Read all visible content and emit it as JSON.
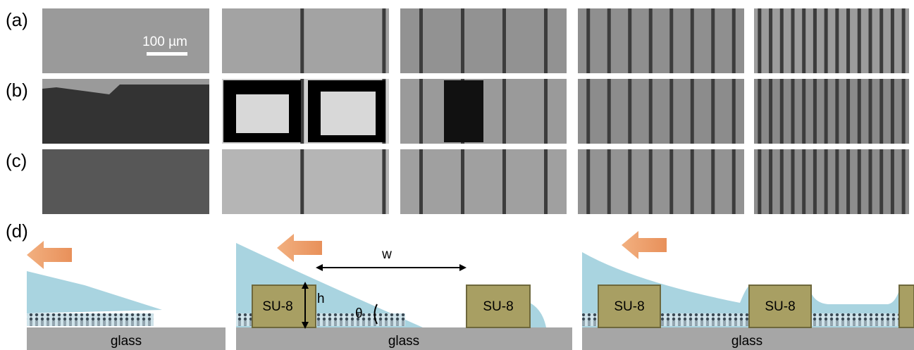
{
  "panel_labels": [
    "(a)",
    "(b)",
    "(c)",
    "(d)"
  ],
  "scale_bar": "100 µm",
  "diagrams": [
    {
      "glass": "glass"
    },
    {
      "blocks": [
        "SU-8",
        "SU-8"
      ],
      "height_label": "h",
      "width_label": "w",
      "angle_label": "θ",
      "glass": "glass"
    },
    {
      "blocks": [
        "SU-8",
        "SU-8"
      ],
      "glass": "glass"
    }
  ]
}
